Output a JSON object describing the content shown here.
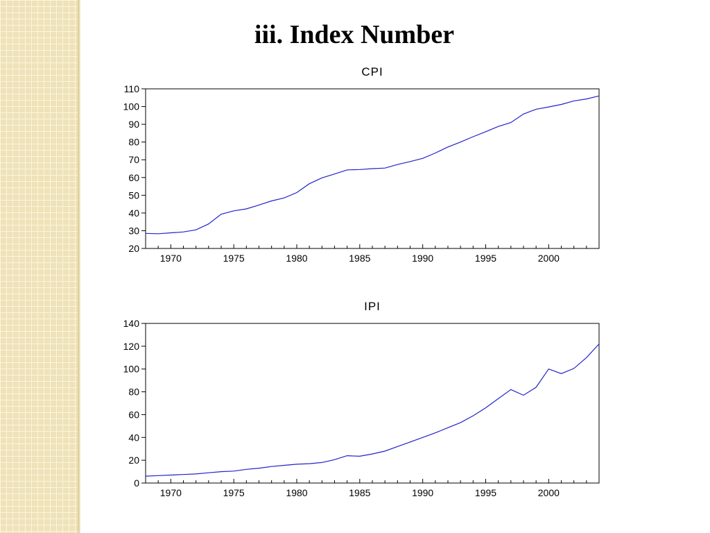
{
  "slide": {
    "title": "iii. Index Number"
  },
  "colors": {
    "line": "#2222cc",
    "axis": "#000000",
    "side_pattern": "#efe2b8"
  },
  "chart_data": [
    {
      "type": "line",
      "title": "CPI",
      "xlabel": "",
      "ylabel": "",
      "xlim": [
        1968,
        2004
      ],
      "ylim": [
        20,
        110
      ],
      "yticks": [
        20,
        30,
        40,
        50,
        60,
        70,
        80,
        90,
        100,
        110
      ],
      "xticks": [
        1970,
        1975,
        1980,
        1985,
        1990,
        1995,
        2000
      ],
      "grid": false,
      "legend": "none",
      "x": [
        1968,
        1969,
        1970,
        1971,
        1972,
        1973,
        1974,
        1975,
        1976,
        1977,
        1978,
        1979,
        1980,
        1981,
        1982,
        1983,
        1984,
        1985,
        1986,
        1987,
        1988,
        1989,
        1990,
        1991,
        1992,
        1993,
        1994,
        1995,
        1996,
        1997,
        1998,
        1999,
        2000,
        2001,
        2002,
        2003,
        2004
      ],
      "series": [
        {
          "values": [
            28.5,
            28.3,
            28.8,
            29.3,
            30.5,
            33.8,
            39.3,
            41.2,
            42.3,
            44.5,
            46.8,
            48.5,
            51.5,
            56.5,
            59.8,
            62.0,
            64.3,
            64.5,
            65.0,
            65.3,
            67.3,
            69.0,
            70.8,
            73.8,
            77.2,
            80.0,
            83.0,
            85.8,
            88.8,
            91.0,
            95.8,
            98.5,
            99.8,
            101.2,
            103.2,
            104.3,
            106.0
          ]
        }
      ]
    },
    {
      "type": "line",
      "title": "IPI",
      "xlabel": "",
      "ylabel": "",
      "xlim": [
        1968,
        2004
      ],
      "ylim": [
        0,
        140
      ],
      "yticks": [
        0,
        20,
        40,
        60,
        80,
        100,
        120,
        140
      ],
      "xticks": [
        1970,
        1975,
        1980,
        1985,
        1990,
        1995,
        2000
      ],
      "grid": false,
      "legend": "none",
      "x": [
        1968,
        1969,
        1970,
        1971,
        1972,
        1973,
        1974,
        1975,
        1976,
        1977,
        1978,
        1979,
        1980,
        1981,
        1982,
        1983,
        1984,
        1985,
        1986,
        1987,
        1988,
        1989,
        1990,
        1991,
        1992,
        1993,
        1994,
        1995,
        1996,
        1997,
        1998,
        1999,
        2000,
        2001,
        2002,
        2003,
        2004
      ],
      "series": [
        {
          "values": [
            6.0,
            6.5,
            7.0,
            7.5,
            8.0,
            9.0,
            10.0,
            10.5,
            12.0,
            13.0,
            14.5,
            15.5,
            16.5,
            17.0,
            18.0,
            20.5,
            24.0,
            23.5,
            25.5,
            28.0,
            32.0,
            36.0,
            40.0,
            44.0,
            48.5,
            53.0,
            59.0,
            66.0,
            74.0,
            82.0,
            77.0,
            84.0,
            100.0,
            96.0,
            100.5,
            110.0,
            122.0
          ]
        }
      ]
    }
  ]
}
